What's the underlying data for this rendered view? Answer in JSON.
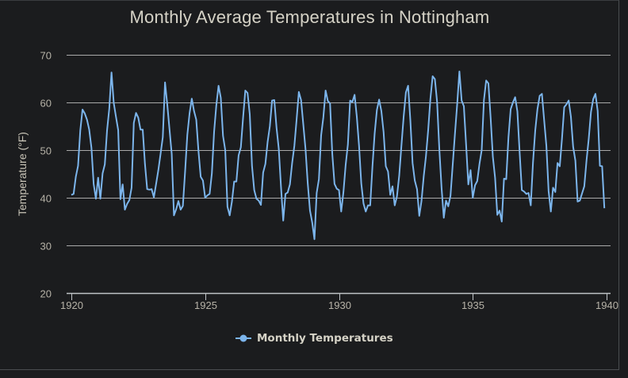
{
  "chart_data": {
    "type": "line",
    "title": "Monthly Average Temperatures in Nottingham",
    "xlabel": "",
    "ylabel": "Temperature (°F)",
    "xlim": [
      1920,
      1940
    ],
    "ylim": [
      20,
      70
    ],
    "grid": true,
    "x_ticks": [
      "1920",
      "1925",
      "1930",
      "1935",
      "1940"
    ],
    "x_tick_values": [
      1920,
      1925,
      1930,
      1935,
      1940
    ],
    "y_ticks": [
      "70",
      "60",
      "50",
      "40",
      "30",
      "20"
    ],
    "y_tick_values": [
      70,
      60,
      50,
      40,
      30,
      20
    ],
    "legend_position": "bottom",
    "series": [
      {
        "name": "Monthly Temperatures",
        "color": "#7cb5ec",
        "start": 1920,
        "step_per_point": "month",
        "values": [
          40.6,
          40.8,
          44.4,
          46.7,
          54.1,
          58.5,
          57.7,
          56.4,
          54.3,
          50.5,
          42.9,
          39.8,
          44.2,
          39.8,
          45.1,
          47.0,
          54.1,
          58.7,
          66.3,
          59.9,
          57.0,
          54.2,
          39.7,
          42.8,
          37.5,
          38.7,
          39.5,
          42.1,
          55.7,
          57.8,
          56.8,
          54.3,
          54.3,
          47.1,
          41.8,
          41.7,
          41.8,
          40.1,
          42.9,
          45.8,
          49.2,
          52.7,
          64.2,
          59.6,
          54.4,
          49.2,
          36.3,
          37.6,
          39.3,
          37.5,
          38.3,
          45.5,
          53.2,
          57.7,
          60.8,
          58.2,
          56.4,
          49.8,
          44.4,
          43.6,
          40.0,
          40.5,
          40.8,
          45.1,
          53.8,
          59.4,
          63.5,
          61.0,
          53.0,
          50.0,
          38.1,
          36.3,
          39.2,
          43.4,
          43.4,
          48.9,
          50.6,
          56.8,
          62.5,
          62.0,
          57.5,
          46.7,
          41.6,
          39.8,
          39.4,
          38.5,
          45.3,
          47.1,
          51.7,
          55.0,
          60.4,
          60.5,
          54.7,
          50.3,
          42.3,
          35.2,
          40.8,
          41.1,
          42.8,
          47.3,
          50.9,
          56.4,
          62.2,
          60.5,
          55.4,
          50.2,
          43.0,
          37.3,
          34.8,
          31.3,
          41.0,
          43.9,
          53.1,
          56.9,
          62.5,
          60.3,
          59.8,
          49.2,
          42.9,
          41.9,
          41.6,
          37.1,
          41.2,
          46.9,
          51.2,
          60.4,
          60.1,
          61.6,
          57.0,
          50.9,
          43.0,
          38.8,
          37.1,
          38.4,
          38.4,
          46.5,
          53.5,
          58.4,
          60.6,
          58.2,
          53.8,
          46.6,
          45.5,
          40.6,
          42.4,
          38.4,
          40.3,
          44.6,
          50.9,
          57.0,
          62.1,
          63.5,
          56.3,
          47.3,
          43.6,
          41.8,
          36.2,
          39.3,
          44.5,
          48.7,
          54.2,
          60.8,
          65.5,
          64.9,
          60.1,
          50.2,
          42.1,
          35.8,
          39.4,
          38.2,
          40.4,
          46.9,
          53.4,
          59.6,
          66.5,
          60.4,
          59.2,
          51.2,
          42.8,
          45.8,
          40.0,
          42.6,
          43.5,
          47.1,
          50.0,
          60.5,
          64.6,
          64.0,
          56.8,
          48.6,
          44.2,
          36.4,
          37.3,
          35.0,
          44.0,
          43.9,
          52.7,
          58.6,
          60.0,
          61.1,
          58.1,
          49.6,
          41.6,
          41.3,
          40.8,
          41.0,
          38.4,
          47.4,
          54.1,
          58.6,
          61.4,
          61.8,
          56.3,
          50.9,
          41.4,
          37.1,
          42.1,
          41.2,
          47.3,
          46.6,
          52.4,
          59.0,
          59.6,
          60.4,
          57.0,
          50.7,
          47.8,
          39.2,
          39.4,
          40.9,
          42.4,
          47.8,
          52.4,
          58.0,
          60.7,
          61.8,
          58.2,
          46.7,
          46.6,
          37.8
        ]
      }
    ]
  }
}
